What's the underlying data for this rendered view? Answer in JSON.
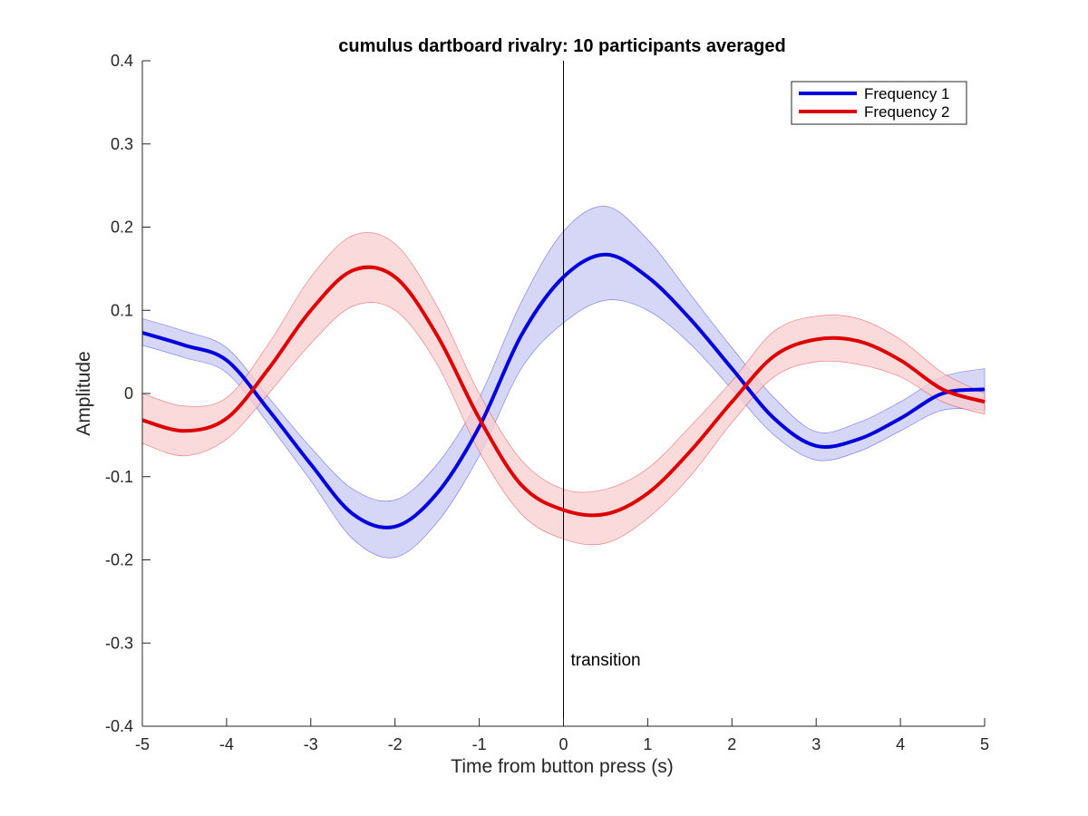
{
  "chart_data": {
    "type": "line",
    "title": "cumulus dartboard rivalry: 10 participants averaged",
    "xlabel": "Time from button press (s)",
    "ylabel": "Amplitude",
    "xlim": [
      -5,
      5
    ],
    "ylim": [
      -0.4,
      0.4
    ],
    "xticks": [
      "-5",
      "-4",
      "-3",
      "-2",
      "-1",
      "0",
      "1",
      "2",
      "3",
      "4",
      "5"
    ],
    "yticks": [
      "0.4",
      "0.3",
      "0.2",
      "0.1",
      "0",
      "-0.1",
      "-0.2",
      "-0.3",
      "-0.4"
    ],
    "grid": false,
    "legend_position": "top-right",
    "annotation": {
      "text": "transition",
      "x": 0
    },
    "x": [
      -5,
      -4.5,
      -4,
      -3.5,
      -3,
      -2.5,
      -2,
      -1.5,
      -1,
      -0.5,
      0,
      0.5,
      1,
      1.5,
      2,
      2.5,
      3,
      3.5,
      4,
      4.5,
      5
    ],
    "series": [
      {
        "name": "Frequency 1",
        "color": "#0000dd",
        "band_color": "#c8c8f4",
        "values": [
          0.073,
          0.058,
          0.04,
          -0.02,
          -0.085,
          -0.145,
          -0.16,
          -0.12,
          -0.04,
          0.07,
          0.14,
          0.167,
          0.14,
          0.09,
          0.03,
          -0.03,
          -0.063,
          -0.055,
          -0.03,
          0.0,
          0.005
        ],
        "lower": [
          0.058,
          0.043,
          0.025,
          -0.037,
          -0.105,
          -0.175,
          -0.197,
          -0.155,
          -0.075,
          0.03,
          0.085,
          0.112,
          0.1,
          0.06,
          0.005,
          -0.05,
          -0.08,
          -0.07,
          -0.045,
          -0.02,
          -0.02
        ],
        "upper": [
          0.09,
          0.075,
          0.055,
          -0.005,
          -0.065,
          -0.115,
          -0.128,
          -0.085,
          -0.005,
          0.11,
          0.195,
          0.225,
          0.185,
          0.12,
          0.055,
          -0.005,
          -0.046,
          -0.035,
          -0.01,
          0.02,
          0.03
        ]
      },
      {
        "name": "Frequency 2",
        "color": "#dd0000",
        "band_color": "#f8cdcd",
        "values": [
          -0.032,
          -0.045,
          -0.03,
          0.03,
          0.1,
          0.148,
          0.14,
          0.07,
          -0.03,
          -0.11,
          -0.14,
          -0.145,
          -0.12,
          -0.07,
          -0.01,
          0.045,
          0.065,
          0.063,
          0.04,
          0.005,
          -0.01
        ],
        "lower": [
          -0.06,
          -0.075,
          -0.055,
          0.0,
          0.06,
          0.105,
          0.1,
          0.035,
          -0.07,
          -0.145,
          -0.175,
          -0.18,
          -0.15,
          -0.1,
          -0.035,
          0.02,
          0.038,
          0.035,
          0.02,
          -0.01,
          -0.025
        ],
        "upper": [
          0.0,
          -0.015,
          -0.005,
          0.06,
          0.14,
          0.19,
          0.18,
          0.105,
          0.0,
          -0.08,
          -0.115,
          -0.115,
          -0.09,
          -0.04,
          0.015,
          0.075,
          0.093,
          0.09,
          0.065,
          0.025,
          0.0
        ]
      }
    ]
  }
}
